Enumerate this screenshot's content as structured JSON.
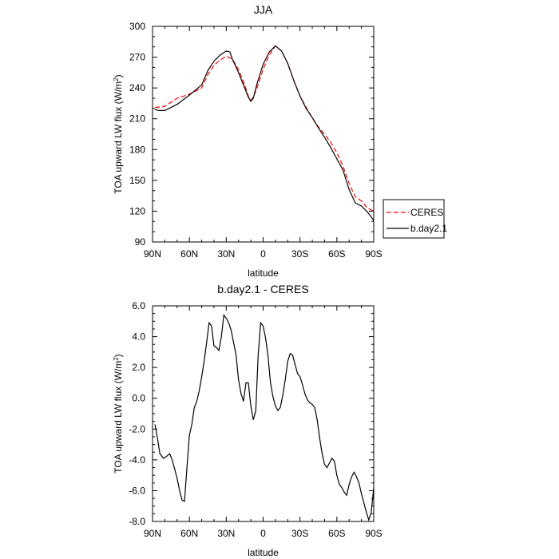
{
  "chart_data": [
    {
      "type": "line",
      "title": "JJA",
      "xlabel": "latitude",
      "ylabel": "TOA upward LW flux (W/m",
      "ylabel_sup": "2",
      "ylabel_end": ")",
      "xlim": [
        90,
        -90
      ],
      "ylim": [
        90,
        300
      ],
      "xticks": [
        90,
        60,
        30,
        0,
        -30,
        -60,
        -90
      ],
      "xtick_labels": [
        "90N",
        "60N",
        "30N",
        "0",
        "30S",
        "60S",
        "90S"
      ],
      "yticks": [
        90,
        120,
        150,
        180,
        210,
        240,
        270,
        300
      ],
      "ytick_labels": [
        "90",
        "120",
        "150",
        "180",
        "210",
        "240",
        "270",
        "300"
      ],
      "legend_position": "right",
      "series": [
        {
          "name": "CERES",
          "color": "#ff0000",
          "dash": "dashed",
          "x": [
            88,
            80,
            70,
            60,
            50,
            45,
            40,
            35,
            30,
            25,
            20,
            15,
            12,
            10,
            8,
            5,
            0,
            -5,
            -10,
            -15,
            -20,
            -25,
            -30,
            -35,
            -40,
            -45,
            -50,
            -55,
            -60,
            -65,
            -70,
            -75,
            -80,
            -85,
            -90
          ],
          "y": [
            221,
            222,
            230,
            234,
            240,
            253,
            262,
            267,
            271,
            268,
            258,
            243,
            232,
            228,
            231,
            240,
            258,
            272,
            281,
            276,
            264,
            247,
            232,
            221,
            211,
            202,
            195,
            187,
            177,
            164,
            147,
            134,
            130,
            123,
            120
          ]
        },
        {
          "name": "b.day2.1",
          "color": "#000000",
          "dash": "solid",
          "x": [
            88,
            85,
            80,
            70,
            60,
            50,
            45,
            40,
            35,
            30,
            27,
            25,
            20,
            15,
            12,
            10,
            8,
            5,
            0,
            -5,
            -10,
            -15,
            -20,
            -25,
            -30,
            -35,
            -40,
            -45,
            -50,
            -55,
            -60,
            -65,
            -70,
            -75,
            -80,
            -85,
            -90
          ],
          "y": [
            219,
            218,
            218,
            224,
            233,
            243,
            257,
            266,
            272,
            276,
            275,
            268,
            255,
            240,
            231,
            227,
            230,
            244,
            263,
            275,
            281,
            276,
            264,
            247,
            232,
            220,
            211,
            201,
            192,
            182,
            171,
            160,
            141,
            128,
            125,
            119,
            111
          ]
        }
      ]
    },
    {
      "type": "line",
      "title": "b.day2.1 - CERES",
      "xlabel": "latitude",
      "ylabel": "TOA upward LW flux (W/m",
      "ylabel_sup": "2",
      "ylabel_end": ")",
      "xlim": [
        90,
        -90
      ],
      "ylim": [
        -8,
        6
      ],
      "xticks": [
        90,
        60,
        30,
        0,
        -30,
        -60,
        -90
      ],
      "xtick_labels": [
        "90N",
        "60N",
        "30N",
        "0",
        "30S",
        "60S",
        "90S"
      ],
      "yticks": [
        -8,
        -6,
        -4,
        -2,
        0,
        2,
        4,
        6
      ],
      "ytick_labels": [
        "-8.0",
        "-6.0",
        "-4.0",
        "-2.0",
        "0.0",
        "2.0",
        "4.0",
        "6.0"
      ],
      "series": [
        {
          "color": "#000000",
          "dash": "solid",
          "x": [
            88,
            86,
            84,
            81,
            79,
            76,
            74,
            72,
            70,
            68,
            66,
            64,
            62,
            60,
            58,
            56,
            54,
            52,
            50,
            48,
            46,
            44,
            42,
            40,
            38,
            36,
            34,
            32,
            30,
            28,
            26,
            24,
            22,
            20,
            18,
            16,
            14,
            12,
            10,
            8,
            6,
            4,
            2,
            0,
            -2,
            -4,
            -6,
            -8,
            -10,
            -12,
            -14,
            -16,
            -18,
            -20,
            -22,
            -24,
            -26,
            -28,
            -30,
            -32,
            -34,
            -36,
            -38,
            -40,
            -42,
            -44,
            -46,
            -48,
            -50,
            -52,
            -54,
            -56,
            -58,
            -60,
            -62,
            -64,
            -66,
            -68,
            -70,
            -72,
            -74,
            -76,
            -78,
            -80,
            -82,
            -84,
            -86,
            -88,
            -90
          ],
          "y": [
            -1.7,
            -2.6,
            -3.6,
            -3.9,
            -3.8,
            -3.6,
            -4.0,
            -4.6,
            -5.2,
            -6.0,
            -6.6,
            -6.7,
            -4.5,
            -2.4,
            -1.7,
            -0.6,
            -0.2,
            0.5,
            1.4,
            2.4,
            3.6,
            4.9,
            4.7,
            3.4,
            3.3,
            3.1,
            4.0,
            5.4,
            5.2,
            4.9,
            4.4,
            3.6,
            2.8,
            1.2,
            0.3,
            -0.2,
            1.0,
            1.0,
            -0.5,
            -1.4,
            -0.8,
            2.8,
            4.9,
            4.7,
            3.9,
            2.7,
            1.0,
            0.1,
            -0.5,
            -0.8,
            -0.6,
            0.2,
            1.2,
            2.4,
            2.9,
            2.8,
            2.2,
            1.6,
            1.4,
            0.9,
            0.3,
            -0.1,
            -0.3,
            -0.4,
            -0.6,
            -1.4,
            -2.6,
            -3.6,
            -4.3,
            -4.5,
            -4.2,
            -3.9,
            -4.1,
            -5.0,
            -5.6,
            -5.8,
            -6.1,
            -6.3,
            -5.6,
            -5.1,
            -4.8,
            -5.1,
            -5.5,
            -6.2,
            -6.8,
            -7.4,
            -7.9,
            -7.4,
            -5.8
          ]
        }
      ]
    }
  ]
}
